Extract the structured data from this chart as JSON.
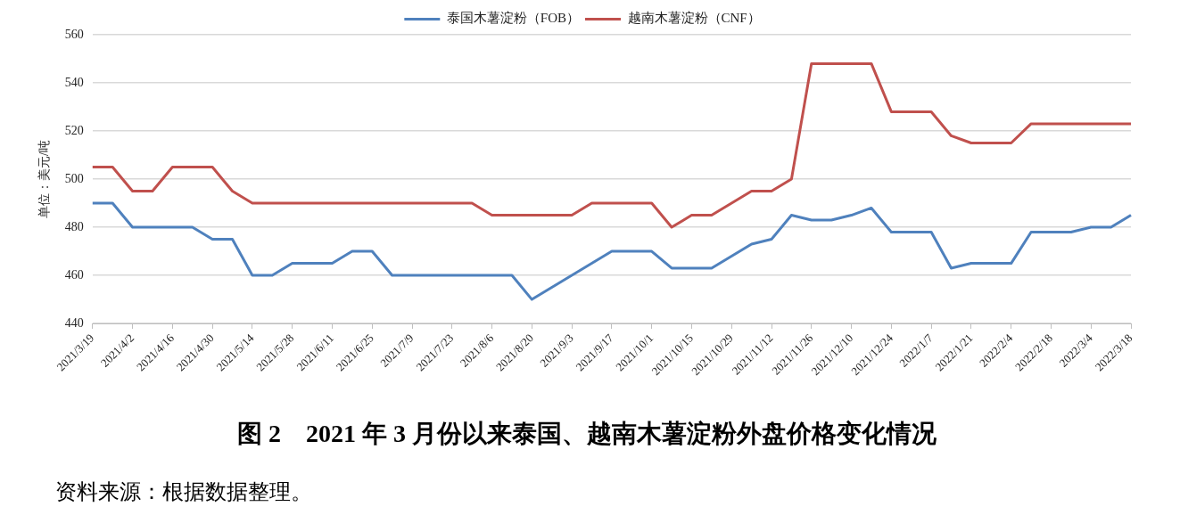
{
  "chart_data": {
    "type": "line",
    "title": "图 2　2021 年 3 月份以来泰国、越南木薯淀粉外盘价格变化情况",
    "ylabel": "单位：美元/吨",
    "annotations": [
      "资料来源：根据数据整理。"
    ],
    "categories": [
      "2021/3/19",
      null,
      "2021/4/2",
      null,
      "2021/4/16",
      null,
      "2021/4/30",
      null,
      "2021/5/14",
      null,
      "2021/5/28",
      null,
      "2021/6/11",
      null,
      "2021/6/25",
      null,
      "2021/7/9",
      null,
      "2021/7/23",
      null,
      "2021/8/6",
      null,
      "2021/8/20",
      null,
      "2021/9/3",
      null,
      "2021/9/17",
      null,
      "2021/10/1",
      null,
      "2021/10/15",
      null,
      "2021/10/29",
      null,
      "2021/11/12",
      null,
      "2021/11/26",
      null,
      "2021/12/10",
      null,
      "2021/12/24",
      null,
      "2022/1/7",
      null,
      "2022/1/21",
      null,
      "2022/2/4",
      null,
      "2022/2/18",
      null,
      "2022/3/4",
      null,
      "2022/3/18"
    ],
    "series": [
      {
        "name": "泰国木薯淀粉（FOB）",
        "color": "#4f81bd",
        "values": [
          490,
          490,
          480,
          480,
          480,
          480,
          475,
          475,
          460,
          460,
          465,
          465,
          465,
          470,
          470,
          460,
          460,
          460,
          460,
          460,
          460,
          460,
          450,
          455,
          460,
          465,
          470,
          470,
          470,
          463,
          463,
          463,
          468,
          473,
          475,
          485,
          483,
          483,
          485,
          488,
          478,
          478,
          478,
          463,
          465,
          465,
          465,
          478,
          478,
          478,
          480,
          480,
          485
        ]
      },
      {
        "name": "越南木薯淀粉（CNF）",
        "color": "#c0504d",
        "values": [
          505,
          505,
          495,
          495,
          505,
          505,
          505,
          495,
          490,
          490,
          490,
          490,
          490,
          490,
          490,
          490,
          490,
          490,
          490,
          490,
          485,
          485,
          485,
          485,
          485,
          490,
          490,
          490,
          490,
          480,
          485,
          485,
          490,
          495,
          495,
          500,
          548,
          548,
          548,
          548,
          528,
          528,
          528,
          518,
          515,
          515,
          515,
          523,
          523,
          523,
          523,
          523,
          523
        ]
      }
    ],
    "ylim": [
      440,
      560
    ],
    "yticks": [
      440,
      460,
      480,
      500,
      520,
      540,
      560
    ],
    "grid": "y",
    "legend": "top",
    "marker": "none",
    "line_style": "solid"
  }
}
